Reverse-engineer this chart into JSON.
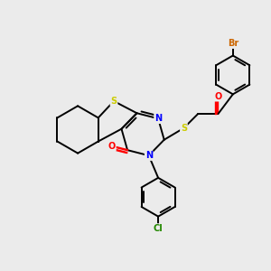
{
  "background_color": "#ebebeb",
  "atom_colors": {
    "S": "#cccc00",
    "N": "#0000ff",
    "O": "#ff0000",
    "Br": "#cc6600",
    "Cl": "#228800",
    "C": "#000000"
  },
  "lw": 1.4,
  "fs": 7.0
}
